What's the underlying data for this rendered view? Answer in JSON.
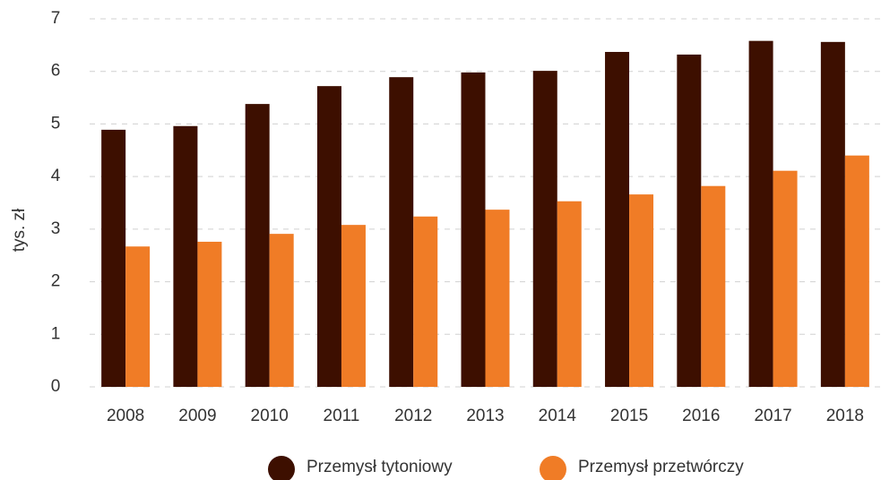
{
  "chart_data": {
    "type": "bar",
    "y_label": "tys. zł",
    "categories": [
      "2008",
      "2009",
      "2010",
      "2011",
      "2012",
      "2013",
      "2014",
      "2015",
      "2016",
      "2017",
      "2018"
    ],
    "series": [
      {
        "name": "Przemysł tytoniowy",
        "color": "#3d0f00",
        "values": [
          4.89,
          4.96,
          5.38,
          5.72,
          5.89,
          5.98,
          6.01,
          6.37,
          6.32,
          6.58,
          6.56
        ]
      },
      {
        "name": "Przemysł przetwórczy",
        "color": "#f07c26",
        "values": [
          2.67,
          2.76,
          2.91,
          3.08,
          3.24,
          3.37,
          3.53,
          3.66,
          3.82,
          4.11,
          4.4
        ]
      }
    ],
    "ylim": [
      0,
      7
    ],
    "yticks": [
      0,
      1,
      2,
      3,
      4,
      5,
      6,
      7
    ],
    "grid": true,
    "legend": "bottom"
  }
}
